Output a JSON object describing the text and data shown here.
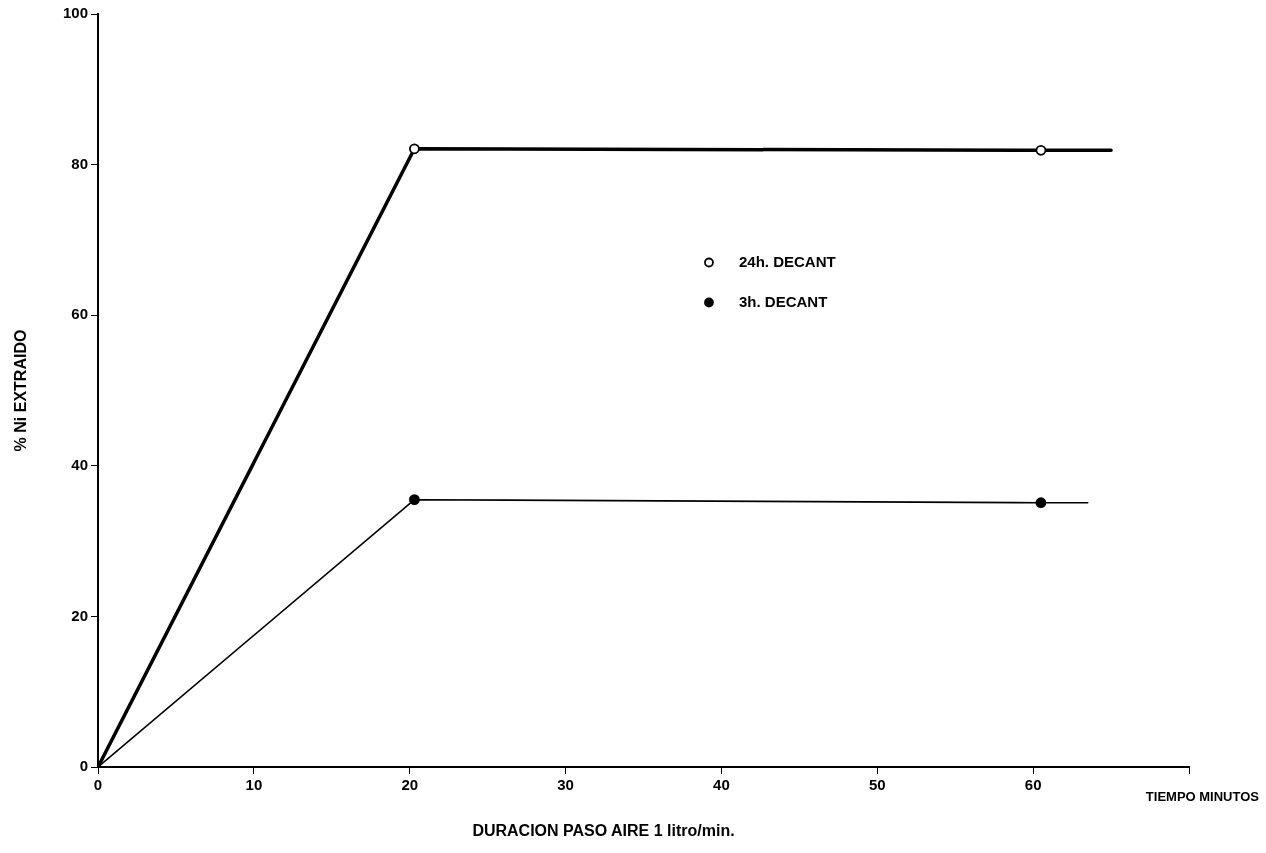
{
  "chart_data": {
    "type": "line",
    "xlabel": "DURACION PASO AIRE 1 litro/min.",
    "ylabel": "% Ni EXTRAIDO",
    "annotations": [
      "TIEMPO MINUTOS"
    ],
    "series": [
      {
        "name": "24h. DECANT",
        "color": "#000000",
        "x": [
          0,
          20.3,
          60.5,
          65
        ],
        "values": [
          0,
          82.1,
          81.9,
          81.9
        ]
      },
      {
        "name": "3h. DECANT",
        "color": "#000000",
        "x": [
          0,
          20.3,
          60.5,
          63.5
        ],
        "values": [
          0,
          35.5,
          35.1,
          35.1
        ]
      }
    ],
    "xlim": [
      0,
      70
    ],
    "xticks": [
      0,
      10,
      20,
      30,
      40,
      50,
      60,
      {
        "value": 70,
        "label": null
      }
    ],
    "ylim": [
      0,
      100
    ],
    "yticks": [
      0,
      20,
      40,
      60,
      80,
      100
    ],
    "grid": false,
    "legend": "top right",
    "marker": "circle",
    "line_style": "solid"
  }
}
